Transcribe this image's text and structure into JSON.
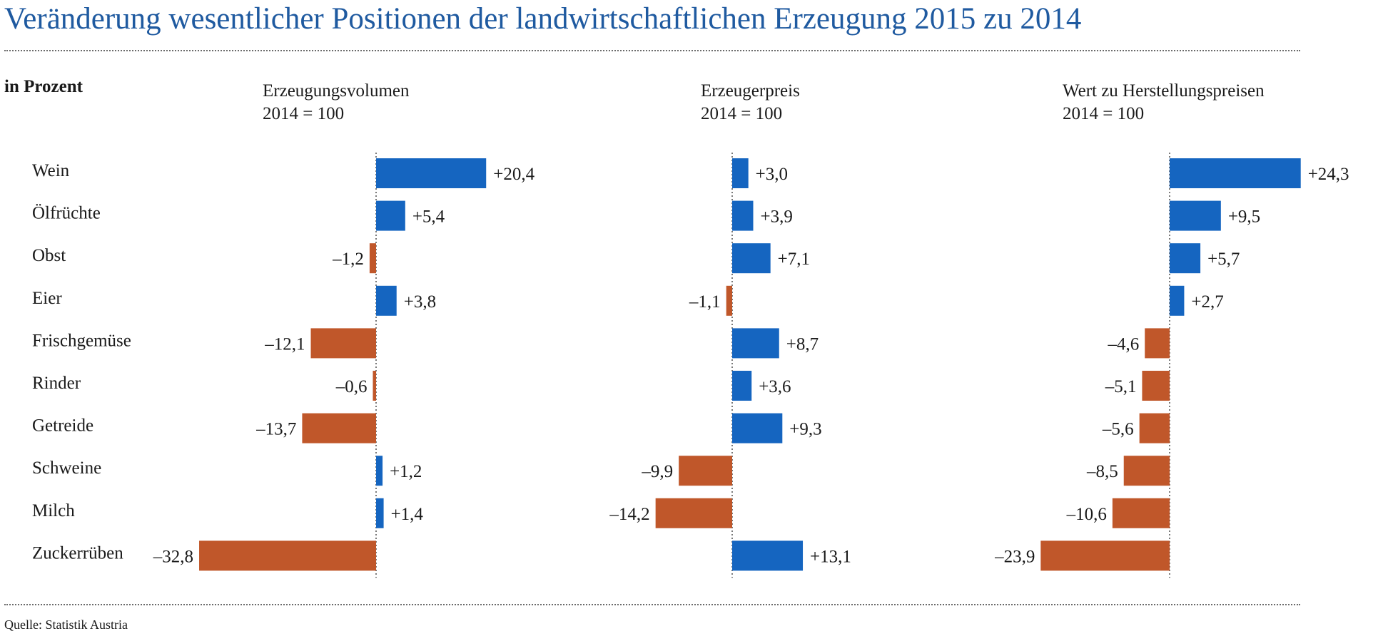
{
  "title": "Veränderung wesentlicher Positionen der landwirtschaftlichen Erzeugung 2015 zu 2014",
  "unit_label": "in Prozent",
  "source": "Quelle: Statistik Austria",
  "colors": {
    "positive": "#1565c0",
    "negative": "#c0572a",
    "title": "#1f5aa0"
  },
  "chart_data": [
    {
      "type": "bar",
      "orientation": "horizontal",
      "title": "Erzeugungsvolumen",
      "subtitle": "2014 = 100",
      "categories": [
        "Wein",
        "Ölfrüchte",
        "Obst",
        "Eier",
        "Frischgemüse",
        "Rinder",
        "Getreide",
        "Schweine",
        "Milch",
        "Zuckerrüben"
      ],
      "values": [
        20.4,
        5.4,
        -1.2,
        3.8,
        -12.1,
        -0.6,
        -13.7,
        1.2,
        1.4,
        -32.8
      ],
      "labels": [
        "+20,4",
        "+5,4",
        "–1,2",
        "+3,8",
        "–12,1",
        "–0,6",
        "–13,7",
        "+1,2",
        "+1,4",
        "–32,8"
      ]
    },
    {
      "type": "bar",
      "orientation": "horizontal",
      "title": "Erzeugerpreis",
      "subtitle": "2014 = 100",
      "categories": [
        "Wein",
        "Ölfrüchte",
        "Obst",
        "Eier",
        "Frischgemüse",
        "Rinder",
        "Getreide",
        "Schweine",
        "Milch",
        "Zuckerrüben"
      ],
      "values": [
        3.0,
        3.9,
        7.1,
        -1.1,
        8.7,
        3.6,
        9.3,
        -9.9,
        -14.2,
        13.1
      ],
      "labels": [
        "+3,0",
        "+3,9",
        "+7,1",
        "–1,1",
        "+8,7",
        "+3,6",
        "+9,3",
        "–9,9",
        "–14,2",
        "+13,1"
      ]
    },
    {
      "type": "bar",
      "orientation": "horizontal",
      "title": "Wert zu Herstellungspreisen",
      "subtitle": "2014 = 100",
      "categories": [
        "Wein",
        "Ölfrüchte",
        "Obst",
        "Eier",
        "Frischgemüse",
        "Rinder",
        "Getreide",
        "Schweine",
        "Milch",
        "Zuckerrüben"
      ],
      "values": [
        24.3,
        9.5,
        5.7,
        2.7,
        -4.6,
        -5.1,
        -5.6,
        -8.5,
        -10.6,
        -23.9
      ],
      "labels": [
        "+24,3",
        "+9,5",
        "+5,7",
        "+2,7",
        "–4,6",
        "–5,1",
        "–5,6",
        "–8,5",
        "–10,6",
        "–23,9"
      ]
    }
  ]
}
